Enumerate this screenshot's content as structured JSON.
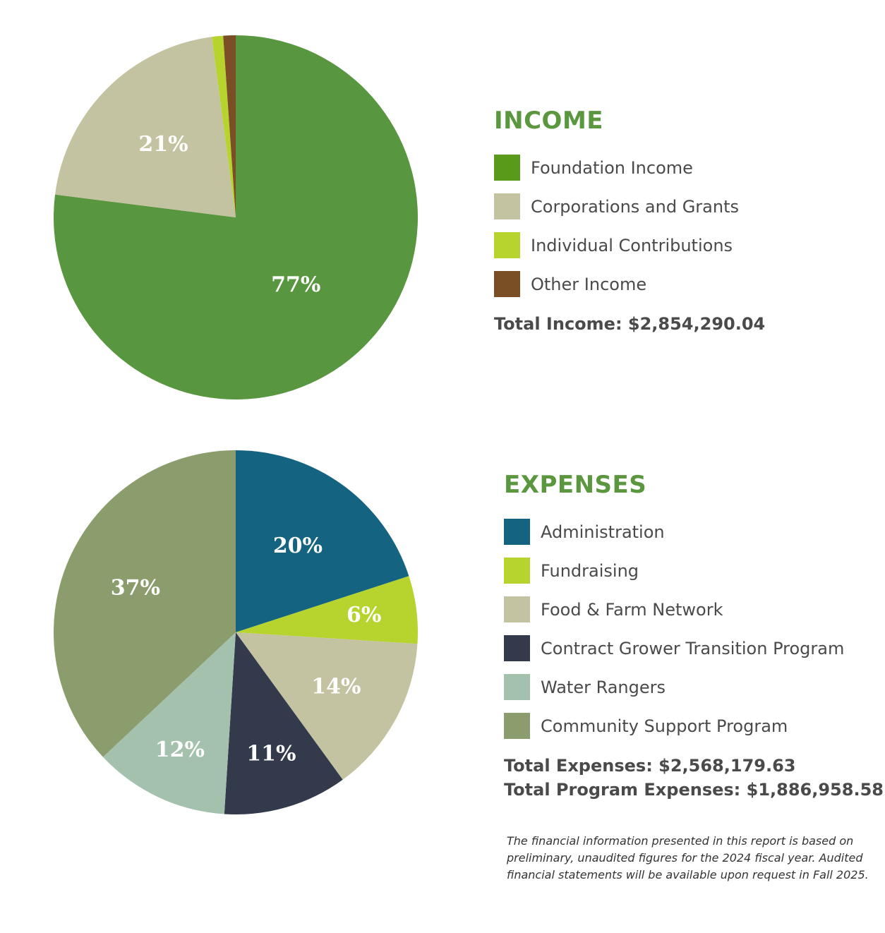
{
  "chart_data": [
    {
      "type": "pie",
      "title": "INCOME",
      "slices": [
        {
          "label": "Foundation Income",
          "value": 77,
          "display": "77%",
          "color": "#58963f",
          "legend_color": "#5a9a1a"
        },
        {
          "label": "Corporations and Grants",
          "value": 20.9,
          "display": "21%",
          "color": "#c4c3a1",
          "legend_color": "#c4c3a1"
        },
        {
          "label": "Individual Contributions",
          "value": 1,
          "display": "",
          "color": "#b7d42e",
          "legend_color": "#b7d42e"
        },
        {
          "label": "Other Income",
          "value": 1.1,
          "display": "",
          "color": "#7a4f26",
          "legend_color": "#7a4f26"
        }
      ],
      "total_text": "Total Income: $2,854,290.04"
    },
    {
      "type": "pie",
      "title": "EXPENSES",
      "slices": [
        {
          "label": "Administration",
          "value": 20,
          "display": "20%",
          "color": "#146381",
          "legend_color": "#146381"
        },
        {
          "label": "Fundraising",
          "value": 6,
          "display": "6%",
          "color": "#b7d42e",
          "legend_color": "#b7d42e"
        },
        {
          "label": "Food & Farm Network",
          "value": 14,
          "display": "14%",
          "color": "#c4c3a1",
          "legend_color": "#c4c3a1"
        },
        {
          "label": "Contract Grower Transition Program",
          "value": 11,
          "display": "11%",
          "color": "#323a4b",
          "legend_color": "#323a4b"
        },
        {
          "label": "Water Rangers",
          "value": 12,
          "display": "12%",
          "color": "#a4c1ad",
          "legend_color": "#a4c1ad"
        },
        {
          "label": "Community Support Program",
          "value": 37,
          "display": "37%",
          "color": "#8b9d6c",
          "legend_color": "#8b9d6c"
        }
      ],
      "total_text": "Total Expenses: $2,568,179.63",
      "program_total_text": "Total Program Expenses: $1,886,958.58"
    }
  ],
  "disclaimer": "The financial information presented in this report is based on preliminary, unaudited figures for the 2024 fiscal year. Audited financial statements will be available upon request in Fall 2025."
}
